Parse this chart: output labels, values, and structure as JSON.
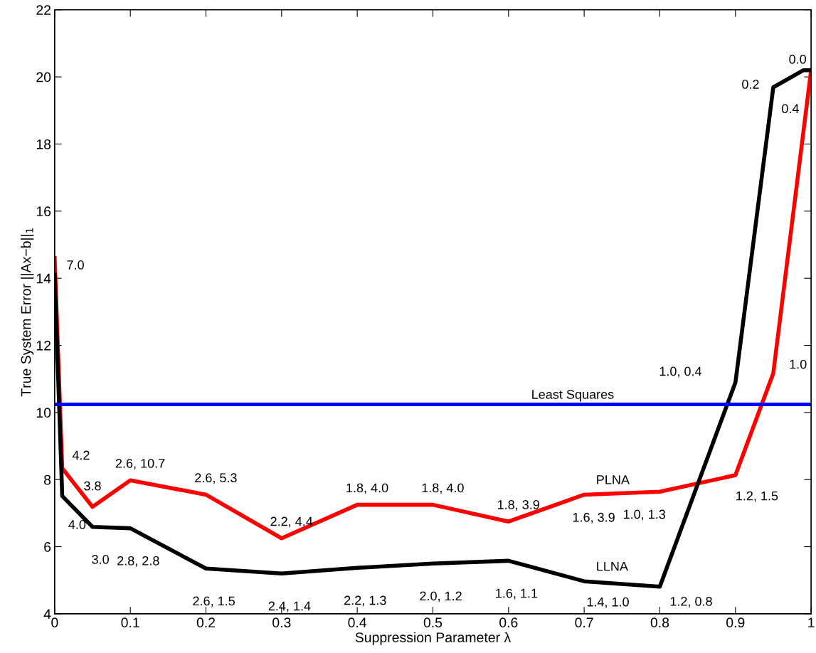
{
  "chart_data": {
    "type": "line",
    "xlabel": "Suppression Parameter λ",
    "ylabel": "True System Error ||Ax−b||$_{1}$",
    "x": [
      0,
      0.01,
      0.05,
      0.1,
      0.2,
      0.3,
      0.4,
      0.5,
      0.6,
      0.7,
      0.8,
      0.9,
      0.95,
      0.99,
      1.0
    ],
    "series": [
      {
        "name": "PLNA",
        "color": "#ff0000",
        "values": [
          14.6,
          8.34,
          7.19,
          7.98,
          7.55,
          6.25,
          7.25,
          7.25,
          6.75,
          7.55,
          7.64,
          8.13,
          11.17,
          null,
          20.2
        ]
      },
      {
        "name": "LLNA",
        "color": "#000000",
        "values": [
          14.1,
          7.51,
          6.59,
          6.55,
          5.35,
          5.2,
          5.37,
          5.5,
          5.58,
          4.97,
          4.81,
          10.9,
          19.69,
          20.2,
          20.2
        ]
      }
    ],
    "ref_lines": [
      {
        "axis": "y",
        "value": 10.24,
        "label": "Least Squares",
        "color": "#0000ff",
        "line_style": "solid"
      }
    ],
    "xlim": [
      0,
      1
    ],
    "xticks": [
      0,
      0.1,
      0.2,
      0.3,
      0.4,
      0.5,
      0.6,
      0.7,
      0.8,
      0.9,
      1
    ],
    "ylim": [
      4,
      22
    ],
    "yticks": [
      4,
      6,
      8,
      10,
      12,
      14,
      16,
      18,
      20,
      22
    ],
    "grid": false,
    "legend": false,
    "marker": "none",
    "line_style": "solid",
    "annotations": [
      {
        "text": "7.0",
        "x": 0,
        "y": 14.6
      },
      {
        "text": "4.2",
        "x": 0.01,
        "y": 8.34
      },
      {
        "text": "3.8",
        "x": 0.05,
        "y": 7.19
      },
      {
        "text": "2.6, 10.7",
        "x": 0.1,
        "y": 7.98
      },
      {
        "text": "2.6, 5.3",
        "x": 0.2,
        "y": 7.55
      },
      {
        "text": "2.2, 4.4",
        "x": 0.3,
        "y": 6.25
      },
      {
        "text": "1.8, 4.0",
        "x": 0.4,
        "y": 7.25
      },
      {
        "text": "1.8, 4.0",
        "x": 0.5,
        "y": 7.25
      },
      {
        "text": "1.8, 3.9",
        "x": 0.6,
        "y": 6.75
      },
      {
        "text": "1.6, 3.9",
        "x": 0.7,
        "y": 7.55
      },
      {
        "text": "1.0, 1.3",
        "x": 0.8,
        "y": 7.64
      },
      {
        "text": "1.2, 1.5",
        "x": 0.9,
        "y": 8.13
      },
      {
        "text": "1.0",
        "x": 0.95,
        "y": 11.17
      },
      {
        "text": "0.4",
        "x": 1.0,
        "y": 20.2
      },
      {
        "text": "4.0",
        "x": 0.01,
        "y": 7.51
      },
      {
        "text": "3.0",
        "x": 0.05,
        "y": 6.59
      },
      {
        "text": "2.8, 2.8",
        "x": 0.1,
        "y": 6.55
      },
      {
        "text": "2.6, 1.5",
        "x": 0.2,
        "y": 5.35
      },
      {
        "text": "2.4, 1.4",
        "x": 0.3,
        "y": 5.2
      },
      {
        "text": "2.2, 1.3",
        "x": 0.4,
        "y": 5.37
      },
      {
        "text": "2.0, 1.2",
        "x": 0.5,
        "y": 5.5
      },
      {
        "text": "1.6, 1.1",
        "x": 0.6,
        "y": 5.58
      },
      {
        "text": "1.4, 1.0",
        "x": 0.7,
        "y": 4.97
      },
      {
        "text": "1.2, 0.8",
        "x": 0.8,
        "y": 4.81
      },
      {
        "text": "1.0, 0.4",
        "x": 0.9,
        "y": 10.9
      },
      {
        "text": "0.2",
        "x": 0.95,
        "y": 19.69
      },
      {
        "text": "0.0",
        "x": 0.99,
        "y": 20.2
      }
    ]
  }
}
